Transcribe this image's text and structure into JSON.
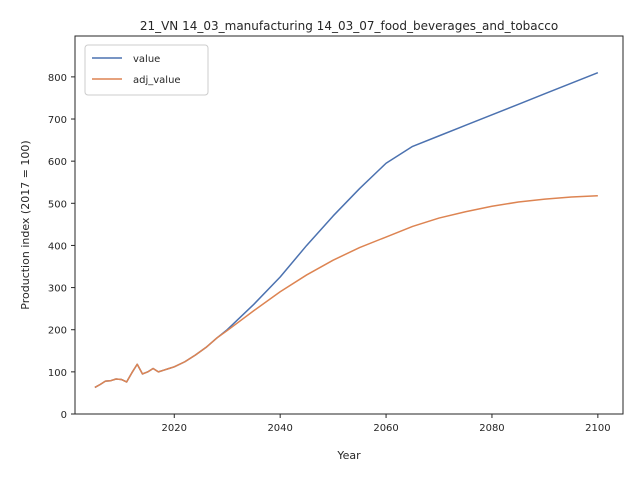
{
  "chart_data": {
    "type": "line",
    "title": "21_VN 14_03_manufacturing 14_03_07_food_beverages_and_tobacco",
    "xlabel": "Year",
    "ylabel": "Production index (2017 = 100)",
    "xlim": [
      2001.25,
      2104.75
    ],
    "ylim": [
      0,
      897
    ],
    "xticks": [
      2020,
      2040,
      2060,
      2080,
      2100
    ],
    "yticks": [
      0,
      100,
      200,
      300,
      400,
      500,
      600,
      700,
      800
    ],
    "grid": false,
    "legend_position": "top-left",
    "series": [
      {
        "name": "value",
        "color": "#4c72b0",
        "x": [
          2005,
          2006,
          2007,
          2008,
          2009,
          2010,
          2011,
          2012,
          2013,
          2014,
          2015,
          2016,
          2017,
          2018,
          2019,
          2020,
          2022,
          2024,
          2026,
          2028,
          2030,
          2035,
          2040,
          2045,
          2050,
          2055,
          2060,
          2065,
          2070,
          2075,
          2080,
          2085,
          2090,
          2095,
          2100
        ],
        "y": [
          63,
          70,
          78,
          79,
          83,
          82,
          76,
          98,
          118,
          95,
          100,
          108,
          100,
          104,
          108,
          112,
          124,
          140,
          158,
          180,
          200,
          260,
          325,
          400,
          470,
          535,
          595,
          635,
          660,
          685,
          710,
          735,
          760,
          785,
          810
        ]
      },
      {
        "name": "adj_value",
        "color": "#dd8452",
        "x": [
          2005,
          2006,
          2007,
          2008,
          2009,
          2010,
          2011,
          2012,
          2013,
          2014,
          2015,
          2016,
          2017,
          2018,
          2019,
          2020,
          2022,
          2024,
          2026,
          2028,
          2030,
          2035,
          2040,
          2045,
          2050,
          2055,
          2060,
          2065,
          2070,
          2075,
          2080,
          2085,
          2090,
          2095,
          2100
        ],
        "y": [
          63,
          70,
          78,
          79,
          83,
          82,
          76,
          98,
          118,
          95,
          100,
          108,
          100,
          104,
          108,
          112,
          124,
          140,
          158,
          180,
          198,
          245,
          290,
          330,
          365,
          395,
          420,
          445,
          465,
          480,
          493,
          503,
          510,
          515,
          518
        ]
      }
    ]
  }
}
